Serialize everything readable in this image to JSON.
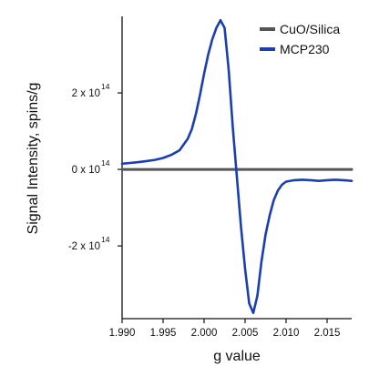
{
  "chart_data": {
    "type": "line",
    "title": "",
    "xlabel": "g value",
    "ylabel": "Signal Intensity, spins/g",
    "xlim": [
      1.99,
      2.018
    ],
    "ylim": [
      -390000000000000.0,
      400000000000000.0
    ],
    "x_ticks": [
      {
        "value": 1.99,
        "label": "1.990"
      },
      {
        "value": 1.995,
        "label": "1.995"
      },
      {
        "value": 2.0,
        "label": "2.000"
      },
      {
        "value": 2.005,
        "label": "2.005"
      },
      {
        "value": 2.01,
        "label": "2.010"
      },
      {
        "value": 2.015,
        "label": "2.015"
      }
    ],
    "y_ticks": [
      {
        "value": 200000000000000.0,
        "mantissa": "2 x 10",
        "exponent": "14"
      },
      {
        "value": 0,
        "mantissa": "0 x 10",
        "exponent": "14"
      },
      {
        "value": -200000000000000.0,
        "mantissa": "-2 x 10",
        "exponent": "14"
      }
    ],
    "legend_position": "top-right",
    "grid": false,
    "series": [
      {
        "name": "CuO/Silica",
        "color": "#555555",
        "x": [
          1.99,
          2.018
        ],
        "y": [
          0.0,
          0.0
        ]
      },
      {
        "name": "MCP230",
        "color": "#1a3fb5",
        "x": [
          1.99,
          1.991,
          1.992,
          1.993,
          1.994,
          1.995,
          1.996,
          1.997,
          1.998,
          1.9985,
          1.999,
          1.9995,
          2.0,
          2.0005,
          2.001,
          2.0015,
          2.002,
          2.0025,
          2.003,
          2.0035,
          2.004,
          2.0045,
          2.005,
          2.0055,
          2.006,
          2.0065,
          2.007,
          2.0075,
          2.008,
          2.0085,
          2.009,
          2.0095,
          2.01,
          2.011,
          2.012,
          2.013,
          2.014,
          2.015,
          2.016,
          2.017,
          2.018
        ],
        "y": [
          15000000000000.0,
          17000000000000.0,
          19000000000000.0,
          22000000000000.0,
          25000000000000.0,
          30000000000000.0,
          38000000000000.0,
          50000000000000.0,
          80000000000000.0,
          105000000000000.0,
          145000000000000.0,
          195000000000000.0,
          250000000000000.0,
          300000000000000.0,
          340000000000000.0,
          370000000000000.0,
          390000000000000.0,
          370000000000000.0,
          260000000000000.0,
          110000000000000.0,
          -20000000000000.0,
          -150000000000000.0,
          -260000000000000.0,
          -350000000000000.0,
          -375000000000000.0,
          -330000000000000.0,
          -240000000000000.0,
          -170000000000000.0,
          -120000000000000.0,
          -80000000000000.0,
          -55000000000000.0,
          -40000000000000.0,
          -32000000000000.0,
          -28000000000000.0,
          -27000000000000.0,
          -28000000000000.0,
          -30000000000000.0,
          -28000000000000.0,
          -27000000000000.0,
          -28000000000000.0,
          -30000000000000.0
        ]
      }
    ]
  }
}
